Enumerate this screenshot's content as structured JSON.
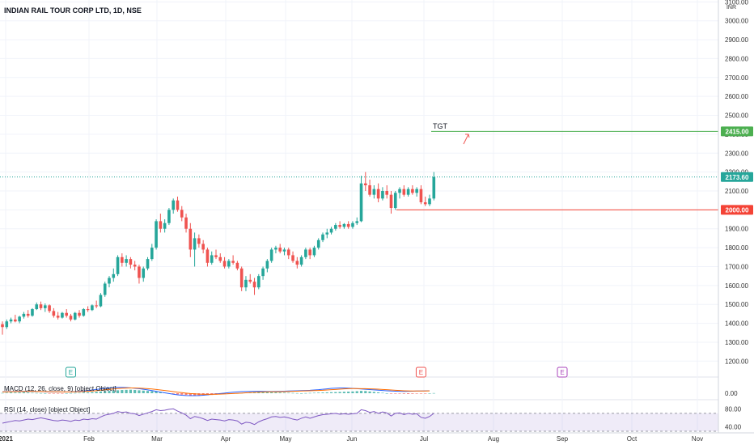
{
  "header": {
    "title": "INDIAN RAIL TOUR CORP LTD, 1D, NSE"
  },
  "chart_data": {
    "type": "candlestick",
    "title": "INDIAN RAIL TOUR CORP LTD, 1D, NSE",
    "currency": "INR",
    "grid": true,
    "ylim": [
      1120,
      3110
    ],
    "y_ticks": [
      1200,
      1300,
      1400,
      1500,
      1600,
      1700,
      1800,
      1900,
      2000,
      2100,
      2200,
      2300,
      2400,
      2500,
      2600,
      2700,
      2800,
      2900,
      3000,
      3100
    ],
    "y_tick_labels": [
      "1200.00",
      "1300.00",
      "1400.00",
      "1500.00",
      "1600.00",
      "1700.00",
      "1800.00",
      "1900.00",
      "2000.00",
      "2100.00",
      "2200.00",
      "2300.00",
      "2400.00",
      "2500.00",
      "2600.00",
      "2700.00",
      "2800.00",
      "2900.00",
      "3000.00",
      "3100.00"
    ],
    "x_tick_labels": [
      "2021",
      "Feb",
      "Mar",
      "Apr",
      "May",
      "Jun",
      "Jul",
      "Aug",
      "Sep",
      "Oct",
      "Nov"
    ],
    "colors": {
      "up": "#26a69a",
      "down": "#ef5350",
      "grid": "#f0f3fa",
      "axis_text": "#333333"
    },
    "candles": [
      {
        "o": 1395,
        "h": 1410,
        "l": 1340,
        "c": 1380
      },
      {
        "o": 1380,
        "h": 1420,
        "l": 1370,
        "c": 1410
      },
      {
        "o": 1410,
        "h": 1430,
        "l": 1400,
        "c": 1420
      },
      {
        "o": 1420,
        "h": 1445,
        "l": 1405,
        "c": 1410
      },
      {
        "o": 1410,
        "h": 1440,
        "l": 1400,
        "c": 1435
      },
      {
        "o": 1435,
        "h": 1460,
        "l": 1425,
        "c": 1450
      },
      {
        "o": 1450,
        "h": 1470,
        "l": 1430,
        "c": 1440
      },
      {
        "o": 1440,
        "h": 1480,
        "l": 1435,
        "c": 1475
      },
      {
        "o": 1475,
        "h": 1510,
        "l": 1470,
        "c": 1500
      },
      {
        "o": 1500,
        "h": 1515,
        "l": 1470,
        "c": 1480
      },
      {
        "o": 1480,
        "h": 1505,
        "l": 1460,
        "c": 1495
      },
      {
        "o": 1495,
        "h": 1500,
        "l": 1455,
        "c": 1465
      },
      {
        "o": 1465,
        "h": 1480,
        "l": 1430,
        "c": 1440
      },
      {
        "o": 1440,
        "h": 1460,
        "l": 1420,
        "c": 1430
      },
      {
        "o": 1430,
        "h": 1460,
        "l": 1425,
        "c": 1455
      },
      {
        "o": 1455,
        "h": 1475,
        "l": 1430,
        "c": 1440
      },
      {
        "o": 1440,
        "h": 1450,
        "l": 1410,
        "c": 1420
      },
      {
        "o": 1420,
        "h": 1460,
        "l": 1415,
        "c": 1455
      },
      {
        "o": 1455,
        "h": 1470,
        "l": 1430,
        "c": 1440
      },
      {
        "o": 1440,
        "h": 1480,
        "l": 1435,
        "c": 1475
      },
      {
        "o": 1475,
        "h": 1490,
        "l": 1460,
        "c": 1470
      },
      {
        "o": 1470,
        "h": 1500,
        "l": 1465,
        "c": 1495
      },
      {
        "o": 1495,
        "h": 1520,
        "l": 1480,
        "c": 1490
      },
      {
        "o": 1490,
        "h": 1560,
        "l": 1485,
        "c": 1550
      },
      {
        "o": 1550,
        "h": 1620,
        "l": 1540,
        "c": 1610
      },
      {
        "o": 1610,
        "h": 1650,
        "l": 1590,
        "c": 1640
      },
      {
        "o": 1640,
        "h": 1690,
        "l": 1620,
        "c": 1660
      },
      {
        "o": 1660,
        "h": 1760,
        "l": 1650,
        "c": 1750
      },
      {
        "o": 1750,
        "h": 1770,
        "l": 1700,
        "c": 1720
      },
      {
        "o": 1720,
        "h": 1760,
        "l": 1700,
        "c": 1740
      },
      {
        "o": 1740,
        "h": 1750,
        "l": 1690,
        "c": 1710
      },
      {
        "o": 1710,
        "h": 1730,
        "l": 1680,
        "c": 1700
      },
      {
        "o": 1700,
        "h": 1710,
        "l": 1610,
        "c": 1640
      },
      {
        "o": 1640,
        "h": 1700,
        "l": 1620,
        "c": 1690
      },
      {
        "o": 1690,
        "h": 1750,
        "l": 1680,
        "c": 1740
      },
      {
        "o": 1740,
        "h": 1820,
        "l": 1730,
        "c": 1800
      },
      {
        "o": 1800,
        "h": 1950,
        "l": 1790,
        "c": 1940
      },
      {
        "o": 1940,
        "h": 1980,
        "l": 1880,
        "c": 1900
      },
      {
        "o": 1900,
        "h": 1950,
        "l": 1880,
        "c": 1930
      },
      {
        "o": 1930,
        "h": 2010,
        "l": 1920,
        "c": 2000
      },
      {
        "o": 2000,
        "h": 2060,
        "l": 1980,
        "c": 2050
      },
      {
        "o": 2050,
        "h": 2070,
        "l": 1990,
        "c": 2000
      },
      {
        "o": 2000,
        "h": 2020,
        "l": 1940,
        "c": 1960
      },
      {
        "o": 1960,
        "h": 1980,
        "l": 1880,
        "c": 1900
      },
      {
        "o": 1900,
        "h": 1930,
        "l": 1750,
        "c": 1790
      },
      {
        "o": 1790,
        "h": 1880,
        "l": 1700,
        "c": 1850
      },
      {
        "o": 1850,
        "h": 1870,
        "l": 1800,
        "c": 1820
      },
      {
        "o": 1820,
        "h": 1840,
        "l": 1770,
        "c": 1790
      },
      {
        "o": 1790,
        "h": 1800,
        "l": 1700,
        "c": 1720
      },
      {
        "o": 1720,
        "h": 1780,
        "l": 1710,
        "c": 1760
      },
      {
        "o": 1760,
        "h": 1790,
        "l": 1740,
        "c": 1750
      },
      {
        "o": 1750,
        "h": 1770,
        "l": 1720,
        "c": 1730
      },
      {
        "o": 1730,
        "h": 1750,
        "l": 1690,
        "c": 1700
      },
      {
        "o": 1700,
        "h": 1740,
        "l": 1690,
        "c": 1730
      },
      {
        "o": 1730,
        "h": 1760,
        "l": 1710,
        "c": 1720
      },
      {
        "o": 1720,
        "h": 1730,
        "l": 1680,
        "c": 1690
      },
      {
        "o": 1690,
        "h": 1700,
        "l": 1570,
        "c": 1590
      },
      {
        "o": 1590,
        "h": 1650,
        "l": 1570,
        "c": 1630
      },
      {
        "o": 1630,
        "h": 1660,
        "l": 1610,
        "c": 1620
      },
      {
        "o": 1620,
        "h": 1640,
        "l": 1550,
        "c": 1590
      },
      {
        "o": 1590,
        "h": 1660,
        "l": 1580,
        "c": 1650
      },
      {
        "o": 1650,
        "h": 1700,
        "l": 1630,
        "c": 1690
      },
      {
        "o": 1690,
        "h": 1740,
        "l": 1670,
        "c": 1730
      },
      {
        "o": 1730,
        "h": 1800,
        "l": 1720,
        "c": 1790
      },
      {
        "o": 1790,
        "h": 1810,
        "l": 1770,
        "c": 1800
      },
      {
        "o": 1800,
        "h": 1820,
        "l": 1770,
        "c": 1780
      },
      {
        "o": 1780,
        "h": 1800,
        "l": 1760,
        "c": 1790
      },
      {
        "o": 1790,
        "h": 1800,
        "l": 1740,
        "c": 1760
      },
      {
        "o": 1760,
        "h": 1780,
        "l": 1720,
        "c": 1730
      },
      {
        "o": 1730,
        "h": 1750,
        "l": 1690,
        "c": 1710
      },
      {
        "o": 1710,
        "h": 1760,
        "l": 1700,
        "c": 1750
      },
      {
        "o": 1750,
        "h": 1800,
        "l": 1740,
        "c": 1790
      },
      {
        "o": 1790,
        "h": 1800,
        "l": 1740,
        "c": 1760
      },
      {
        "o": 1760,
        "h": 1810,
        "l": 1750,
        "c": 1800
      },
      {
        "o": 1800,
        "h": 1850,
        "l": 1790,
        "c": 1840
      },
      {
        "o": 1840,
        "h": 1880,
        "l": 1830,
        "c": 1870
      },
      {
        "o": 1870,
        "h": 1900,
        "l": 1850,
        "c": 1880
      },
      {
        "o": 1880,
        "h": 1910,
        "l": 1870,
        "c": 1900
      },
      {
        "o": 1900,
        "h": 1930,
        "l": 1890,
        "c": 1920
      },
      {
        "o": 1920,
        "h": 1940,
        "l": 1900,
        "c": 1910
      },
      {
        "o": 1910,
        "h": 1930,
        "l": 1900,
        "c": 1925
      },
      {
        "o": 1925,
        "h": 1940,
        "l": 1900,
        "c": 1910
      },
      {
        "o": 1910,
        "h": 1940,
        "l": 1900,
        "c": 1930
      },
      {
        "o": 1930,
        "h": 1960,
        "l": 1920,
        "c": 1940
      },
      {
        "o": 1940,
        "h": 2180,
        "l": 1935,
        "c": 2140
      },
      {
        "o": 2140,
        "h": 2200,
        "l": 2100,
        "c": 2130
      },
      {
        "o": 2130,
        "h": 2160,
        "l": 2070,
        "c": 2080
      },
      {
        "o": 2080,
        "h": 2130,
        "l": 2060,
        "c": 2110
      },
      {
        "o": 2110,
        "h": 2140,
        "l": 2040,
        "c": 2060
      },
      {
        "o": 2060,
        "h": 2120,
        "l": 2050,
        "c": 2100
      },
      {
        "o": 2100,
        "h": 2130,
        "l": 2060,
        "c": 2080
      },
      {
        "o": 2080,
        "h": 2100,
        "l": 1980,
        "c": 2010
      },
      {
        "o": 2010,
        "h": 2100,
        "l": 2000,
        "c": 2090
      },
      {
        "o": 2090,
        "h": 2120,
        "l": 2060,
        "c": 2110
      },
      {
        "o": 2110,
        "h": 2130,
        "l": 2070,
        "c": 2080
      },
      {
        "o": 2080,
        "h": 2120,
        "l": 2070,
        "c": 2110
      },
      {
        "o": 2110,
        "h": 2130,
        "l": 2080,
        "c": 2090
      },
      {
        "o": 2090,
        "h": 2120,
        "l": 2070,
        "c": 2110
      },
      {
        "o": 2110,
        "h": 2130,
        "l": 2030,
        "c": 2040
      },
      {
        "o": 2040,
        "h": 2070,
        "l": 2020,
        "c": 2030
      },
      {
        "o": 2030,
        "h": 2080,
        "l": 2020,
        "c": 2060
      },
      {
        "o": 2060,
        "h": 2200,
        "l": 2050,
        "c": 2173.6
      }
    ],
    "x_positions_note": "candle index i sits at chart x of its trading day; Jul begins near index 100",
    "hlines": [
      {
        "label": "2415.00",
        "value": 2415,
        "color": "#4caf50",
        "text": "TGT"
      },
      {
        "label": "2000.00",
        "value": 2000,
        "color": "#f44336"
      },
      {
        "label": "2173.60",
        "value": 2173.6,
        "color": "#26a69a"
      }
    ],
    "events": [
      {
        "label": "E",
        "index": 16,
        "color": "#26a69a"
      },
      {
        "label": "E",
        "index": 98,
        "color": "#ef5350"
      },
      {
        "label": "E",
        "index": 133,
        "color": "#ab47bc"
      }
    ],
    "macd": {
      "label": "MACD (12, 26, close, 9) [object Object]",
      "tick_label": "0.00",
      "hist": [
        2,
        4,
        6,
        5,
        6,
        7,
        5,
        3,
        2,
        1,
        0,
        -1,
        -1,
        -2,
        -1,
        0,
        1,
        2,
        3,
        5,
        6,
        8,
        10,
        12,
        14,
        16,
        18,
        20,
        22,
        23,
        24,
        22,
        20,
        18,
        16,
        14,
        12,
        8,
        4,
        0,
        -4,
        -8,
        -10,
        -12,
        -14,
        -16,
        -18,
        -16,
        -14,
        -12,
        -10,
        -8,
        -6,
        -4,
        -2,
        0,
        2,
        4,
        6,
        8,
        10,
        9,
        8,
        7,
        6,
        5,
        4,
        3,
        2,
        1,
        0,
        1,
        2,
        3,
        4,
        5,
        6,
        7,
        8,
        9,
        10,
        11,
        12,
        14,
        16,
        15,
        12,
        9,
        6,
        3,
        0,
        -1,
        -2,
        -3,
        -4,
        -5,
        -4,
        -3,
        -2,
        -1,
        0,
        1
      ],
      "macd": [
        20,
        22,
        24,
        25,
        26,
        27,
        27,
        26,
        24,
        22,
        20,
        18,
        17,
        16,
        16,
        17,
        19,
        22,
        26,
        30,
        36,
        44,
        52,
        60,
        68,
        74,
        78,
        80,
        80,
        78,
        74,
        68,
        62,
        54,
        46,
        36,
        26,
        16,
        6,
        -4,
        -14,
        -22,
        -28,
        -32,
        -34,
        -34,
        -32,
        -28,
        -22,
        -16,
        -10,
        -4,
        2,
        8,
        14,
        18,
        22,
        24,
        25,
        26,
        26,
        25,
        24,
        24,
        25,
        26,
        28,
        30,
        32,
        34,
        36,
        38,
        40,
        44,
        48,
        54,
        60,
        66,
        70,
        72,
        72,
        70,
        66,
        62,
        58,
        54,
        50,
        46,
        42,
        38,
        34,
        30,
        28,
        26,
        25,
        26,
        28,
        30,
        31,
        32,
        33
      ],
      "signal": [
        18,
        19,
        21,
        22,
        23,
        24,
        25,
        25,
        24,
        23,
        22,
        21,
        20,
        19,
        18,
        18,
        18,
        19,
        21,
        23,
        26,
        30,
        35,
        41,
        47,
        53,
        59,
        64,
        68,
        71,
        72,
        72,
        70,
        67,
        63,
        58,
        52,
        45,
        38,
        30,
        22,
        14,
        8,
        2,
        -4,
        -8,
        -12,
        -14,
        -15,
        -15,
        -14,
        -12,
        -10,
        -7,
        -4,
        -1,
        2,
        5,
        8,
        11,
        14,
        16,
        18,
        19,
        20,
        21,
        22,
        24,
        26,
        28,
        30,
        32,
        34,
        36,
        38,
        40,
        44,
        48,
        52,
        56,
        60,
        62,
        64,
        64,
        63,
        62,
        60,
        58,
        55,
        52,
        48,
        44,
        40,
        37,
        34,
        32,
        31,
        30,
        30,
        31,
        32
      ]
    },
    "rsi": {
      "label": "RSI (14, close) [object Object]",
      "tick_labels": [
        "80.00",
        "40.00"
      ],
      "ylim": [
        30,
        95
      ],
      "band": [
        30,
        70
      ],
      "values": [
        48,
        50,
        52,
        54,
        53,
        55,
        57,
        56,
        58,
        60,
        58,
        56,
        54,
        53,
        55,
        54,
        52,
        55,
        54,
        57,
        56,
        58,
        57,
        62,
        66,
        68,
        70,
        74,
        72,
        73,
        70,
        69,
        65,
        68,
        71,
        74,
        78,
        76,
        77,
        79,
        80,
        75,
        71,
        66,
        58,
        63,
        61,
        58,
        54,
        57,
        56,
        55,
        53,
        56,
        55,
        53,
        46,
        50,
        49,
        45,
        51,
        55,
        58,
        62,
        63,
        61,
        62,
        60,
        57,
        55,
        59,
        62,
        59,
        62,
        65,
        67,
        68,
        69,
        70,
        68,
        69,
        68,
        69,
        70,
        78,
        76,
        72,
        74,
        70,
        73,
        71,
        64,
        70,
        71,
        67,
        70,
        68,
        69,
        61,
        59,
        63,
        70
      ]
    }
  }
}
